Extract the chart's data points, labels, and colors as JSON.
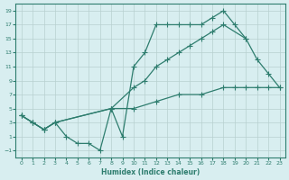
{
  "xlabel": "Humidex (Indice chaleur)",
  "bg_color": "#d8eef0",
  "line_color": "#2e7d6e",
  "grid_color": "#b8d0d0",
  "xlim": [
    -0.5,
    23.5
  ],
  "ylim": [
    -2,
    20
  ],
  "xticks": [
    0,
    1,
    2,
    3,
    4,
    5,
    6,
    7,
    8,
    9,
    10,
    11,
    12,
    13,
    14,
    15,
    16,
    17,
    18,
    19,
    20,
    21,
    22,
    23
  ],
  "yticks": [
    -1,
    1,
    3,
    5,
    7,
    9,
    11,
    13,
    15,
    17,
    19
  ],
  "line1_x": [
    0,
    1,
    2,
    3,
    4,
    5,
    6,
    7,
    8,
    9,
    10,
    11,
    12,
    13,
    14,
    15,
    16,
    17,
    18,
    19,
    20
  ],
  "line1_y": [
    4,
    3,
    2,
    3,
    1,
    0,
    0,
    -1,
    5,
    1,
    11,
    13,
    17,
    17,
    17,
    17,
    17,
    18,
    19,
    17,
    15
  ],
  "line2_x": [
    0,
    1,
    2,
    3,
    8,
    10,
    11,
    12,
    13,
    14,
    15,
    16,
    17,
    18,
    20,
    21,
    22,
    23
  ],
  "line2_y": [
    4,
    3,
    2,
    3,
    5,
    8,
    9,
    11,
    12,
    13,
    14,
    15,
    16,
    17,
    15,
    12,
    10,
    8
  ],
  "line3_x": [
    0,
    1,
    2,
    3,
    8,
    10,
    12,
    14,
    16,
    18,
    19,
    20,
    21,
    22,
    23
  ],
  "line3_y": [
    4,
    3,
    2,
    3,
    5,
    5,
    6,
    7,
    7,
    8,
    8,
    8,
    8,
    8,
    8
  ]
}
